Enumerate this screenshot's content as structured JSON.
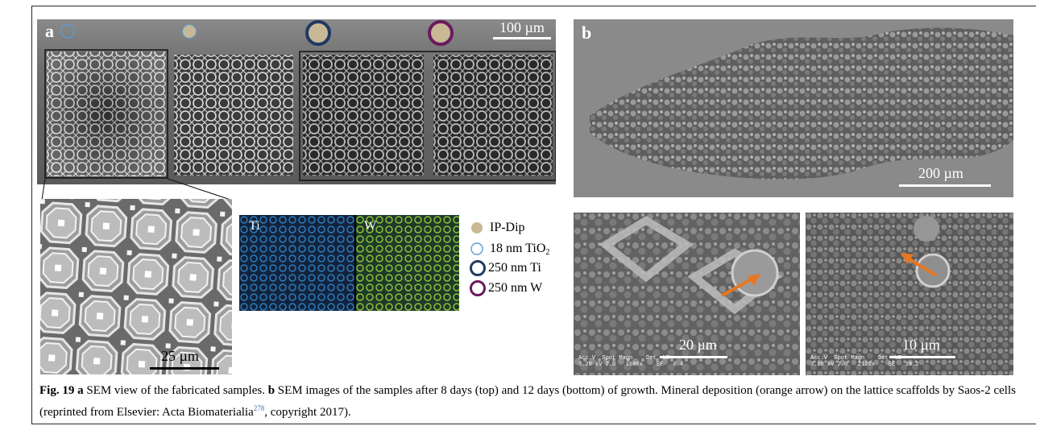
{
  "figure": {
    "panel_a": {
      "label": "a",
      "scale_text": "100 µm",
      "zoom_scale_text": "25 µm",
      "edx": {
        "left_label": "Ti",
        "right_label": "W"
      }
    },
    "panel_b": {
      "label": "b",
      "top_scale_text": "200 µm",
      "bottom_left_scale_text": "20 µm",
      "bottom_right_scale_text": "10 µm",
      "bottom_left_meta": "Acc.V  Spot Magn    Det  WD\n3.20 kV 2.0   1600x    SE   6.4",
      "bottom_right_meta": "Acc.V  Spot Magn    Det  WD\n3.20 kV 2.0   2120x    SE   19.2"
    },
    "legend": [
      {
        "icon": "filled-circle-icon",
        "color": "#c9b896",
        "label": "IP-Dip"
      },
      {
        "icon": "thin-ring-icon",
        "color": "#5b9bd5",
        "label_main": "18 nm TiO",
        "label_sub": "2"
      },
      {
        "icon": "thick-ring-icon",
        "color": "#1f3a63",
        "label": "250 nm Ti"
      },
      {
        "icon": "thick-ring-icon",
        "color": "#6b1a5e",
        "label": "250 nm W"
      }
    ],
    "caption": {
      "fig_label": "Fig. 19",
      "part1_label": "a",
      "part1_text": " SEM view of the fabricated samples. ",
      "part2_label": "b",
      "part2_text": " SEM images of the samples after 8 days (top) and 12 days (bottom) of growth. Mineral deposition (orange arrow) on the lattice scaffolds by Saos-2 cells (reprinted from Elsevier: Acta Biomaterialia",
      "cite": "278",
      "tail": ", copyright 2017)."
    },
    "colors": {
      "arrow": "#e87722",
      "sem_bg": "#6e6e6e"
    }
  }
}
